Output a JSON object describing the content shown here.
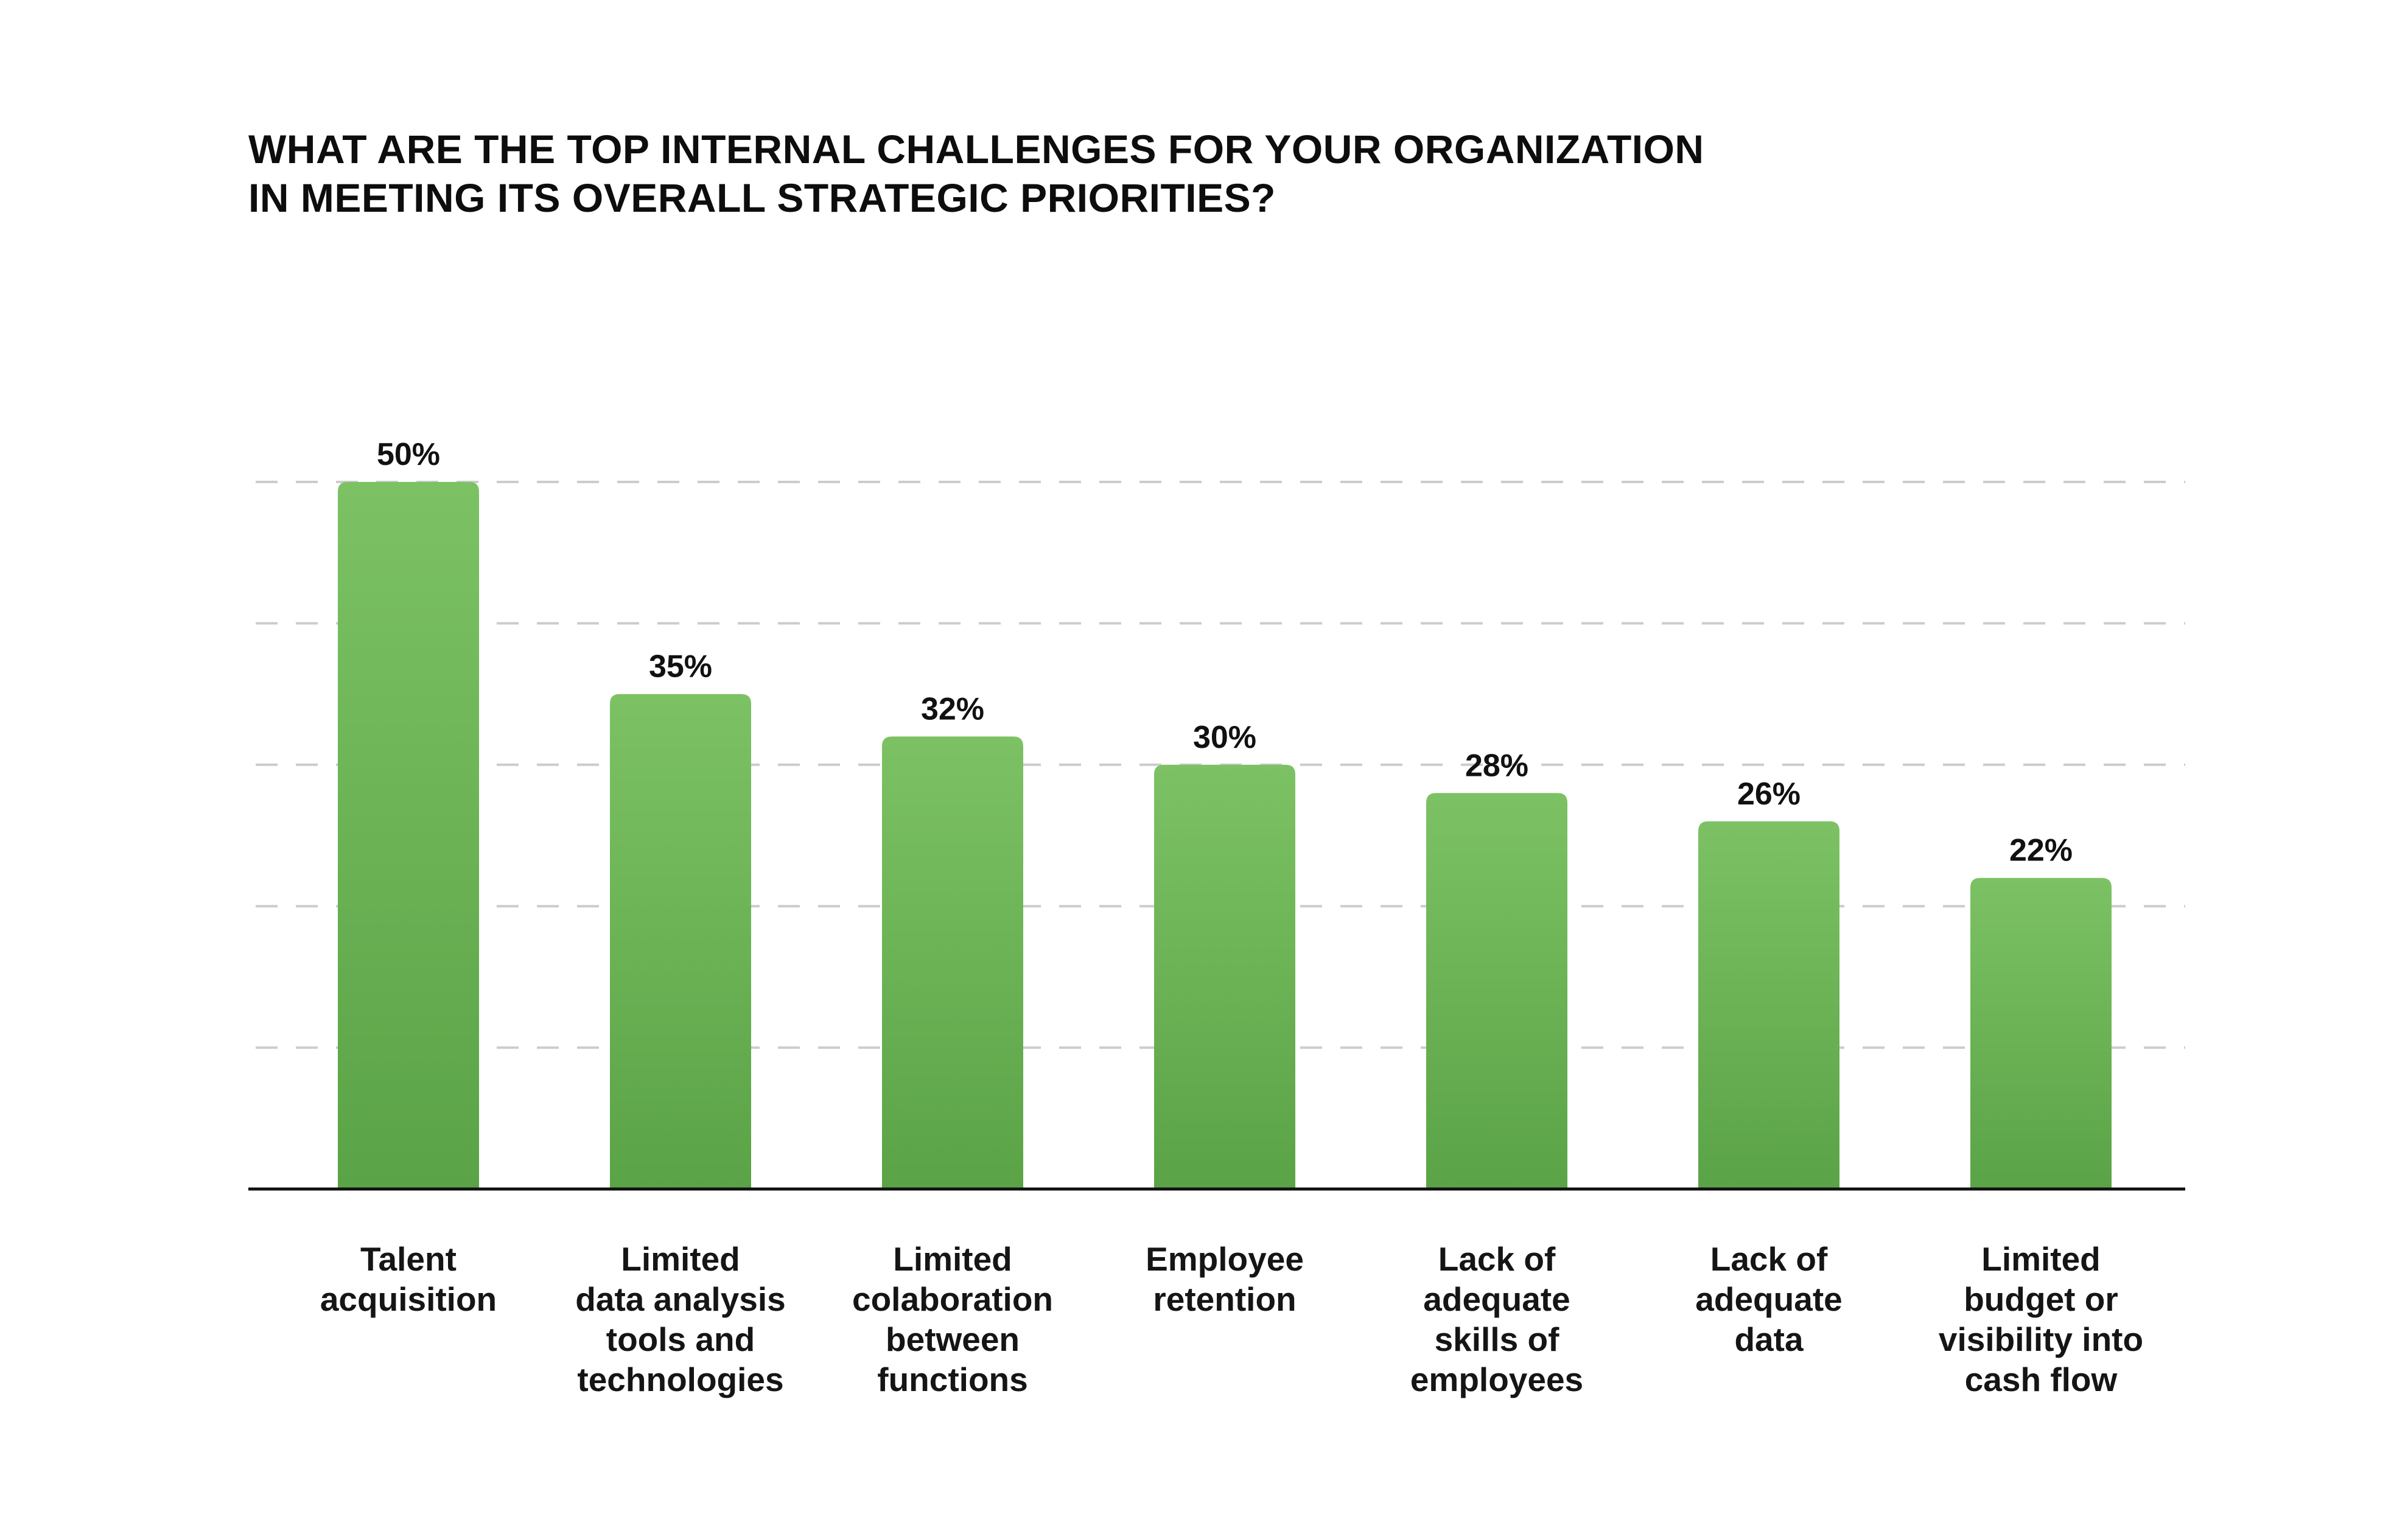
{
  "chart_data": {
    "type": "bar",
    "title_lines": [
      "WHAT ARE THE TOP INTERNAL CHALLENGES FOR YOUR ORGANIZATION",
      "IN MEETING ITS OVERALL STRATEGIC PRIORITIES?"
    ],
    "categories": [
      [
        "Talent",
        "acquisition"
      ],
      [
        "Limited",
        "data analysis",
        "tools and",
        "technologies"
      ],
      [
        "Limited",
        "colaboration",
        "between",
        "functions"
      ],
      [
        "Employee",
        "retention"
      ],
      [
        "Lack of",
        "adequate",
        "skills of",
        "employees"
      ],
      [
        "Lack of",
        "adequate",
        "data"
      ],
      [
        "Limited",
        "budget or",
        "visibility into",
        "cash flow"
      ]
    ],
    "values": [
      50,
      35,
      32,
      30,
      28,
      26,
      22
    ],
    "value_labels": [
      "50%",
      "35%",
      "32%",
      "30%",
      "28%",
      "26%",
      "22%"
    ],
    "ylim": [
      0,
      50
    ],
    "gridlines": [
      10,
      20,
      30,
      40,
      50
    ],
    "grid": true,
    "grid_style": "dashed",
    "bar_color_top": "#7cc264",
    "bar_color_bottom": "#5aa346",
    "grid_color": "#cccccc",
    "axis_color": "#111111"
  }
}
